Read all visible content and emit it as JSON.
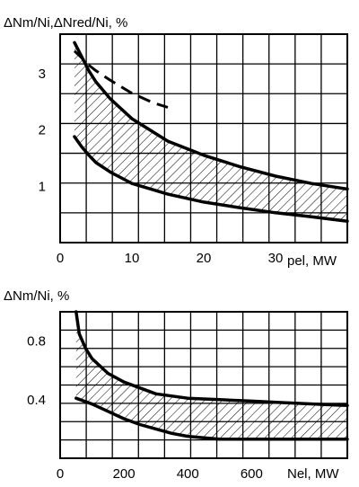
{
  "chart_data": [
    {
      "type": "area",
      "ylabel": "ΔNm/Ni,ΔNred/Ni, %",
      "xlabel": "pel, MW",
      "xlim": [
        0,
        40
      ],
      "ylim": [
        0,
        3.7
      ],
      "x_ticks": [
        0,
        10,
        20,
        30
      ],
      "y_ticks": [
        1,
        2,
        3
      ],
      "grid": true,
      "series": [
        {
          "style": "solid-upper",
          "x": [
            2,
            3,
            4,
            5,
            7,
            10,
            15,
            20,
            25,
            30,
            35,
            40
          ],
          "values": [
            3.55,
            3.3,
            3.05,
            2.85,
            2.55,
            2.2,
            1.8,
            1.55,
            1.35,
            1.18,
            1.05,
            0.95
          ]
        },
        {
          "style": "solid-lower",
          "x": [
            2,
            3,
            4,
            5,
            7,
            10,
            15,
            20,
            25,
            30,
            35,
            40
          ],
          "values": [
            1.88,
            1.7,
            1.55,
            1.42,
            1.25,
            1.05,
            0.86,
            0.72,
            0.62,
            0.53,
            0.46,
            0.38
          ]
        },
        {
          "style": "dashed",
          "x": [
            2,
            3,
            4,
            5,
            7,
            10,
            13,
            15
          ],
          "values": [
            3.4,
            3.28,
            3.15,
            3.05,
            2.88,
            2.65,
            2.48,
            2.4
          ]
        }
      ]
    },
    {
      "type": "area",
      "ylabel": "ΔNm/Ni, %",
      "xlabel": "Nel, MW",
      "xlim": [
        0,
        900
      ],
      "ylim": [
        0,
        1.0
      ],
      "x_ticks": [
        0,
        200,
        400,
        600
      ],
      "y_ticks": [
        0.4,
        0.8
      ],
      "grid": true,
      "series": [
        {
          "style": "solid-upper",
          "x": [
            50,
            60,
            80,
            100,
            150,
            200,
            300,
            400,
            500,
            600,
            700,
            800,
            900
          ],
          "values": [
            1.0,
            0.85,
            0.75,
            0.68,
            0.58,
            0.52,
            0.44,
            0.41,
            0.4,
            0.39,
            0.38,
            0.37,
            0.36
          ]
        },
        {
          "style": "solid-lower",
          "x": [
            50,
            100,
            150,
            200,
            250,
            300,
            350,
            400,
            450,
            500,
            600,
            700,
            800,
            900
          ],
          "values": [
            0.41,
            0.37,
            0.32,
            0.27,
            0.23,
            0.2,
            0.17,
            0.15,
            0.14,
            0.13,
            0.13,
            0.13,
            0.13,
            0.13
          ]
        }
      ]
    }
  ]
}
